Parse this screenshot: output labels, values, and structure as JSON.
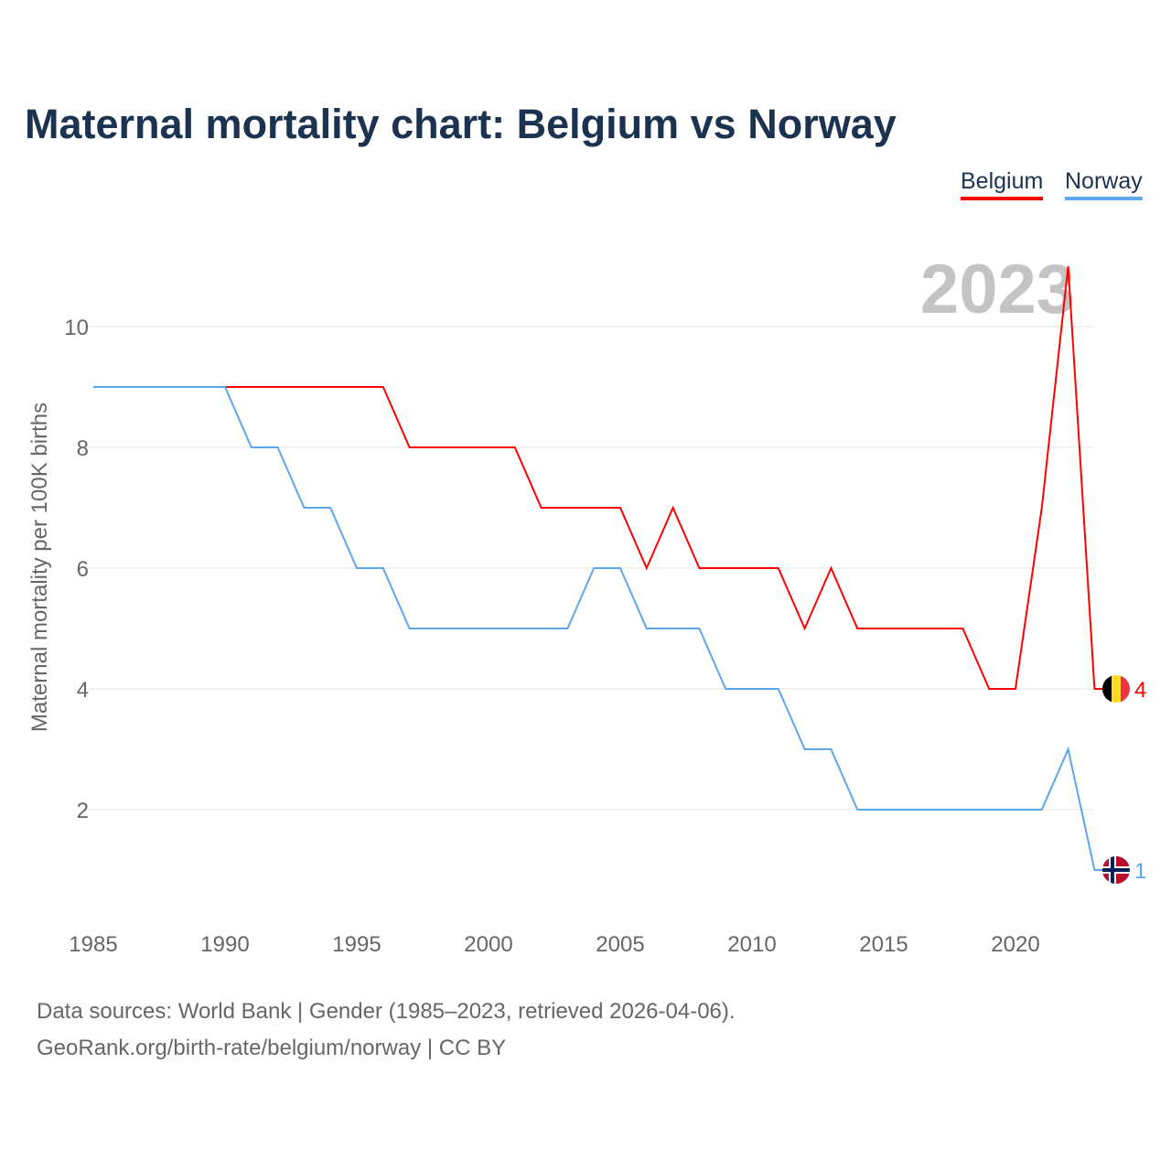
{
  "chart_data": {
    "type": "line",
    "title": "Maternal mortality chart: Belgium vs Norway",
    "xlabel": "",
    "ylabel": "Maternal mortality per 100K births",
    "x": [
      1985,
      1986,
      1987,
      1988,
      1989,
      1990,
      1991,
      1992,
      1993,
      1994,
      1995,
      1996,
      1997,
      1998,
      1999,
      2000,
      2001,
      2002,
      2003,
      2004,
      2005,
      2006,
      2007,
      2008,
      2009,
      2010,
      2011,
      2012,
      2013,
      2014,
      2015,
      2016,
      2017,
      2018,
      2019,
      2020,
      2021,
      2022,
      2023
    ],
    "series": [
      {
        "name": "Belgium",
        "color": "#ff0000",
        "end_label": "4",
        "values": [
          9,
          9,
          9,
          9,
          9,
          9,
          9,
          9,
          9,
          9,
          9,
          9,
          8,
          8,
          8,
          8,
          8,
          7,
          7,
          7,
          7,
          6,
          7,
          6,
          6,
          6,
          6,
          5,
          6,
          5,
          5,
          5,
          5,
          5,
          4,
          4,
          7,
          11,
          4
        ]
      },
      {
        "name": "Norway",
        "color": "#5ca6ec",
        "end_label": "1",
        "values": [
          9,
          9,
          9,
          9,
          9,
          9,
          8,
          8,
          7,
          7,
          6,
          6,
          5,
          5,
          5,
          5,
          5,
          5,
          5,
          6,
          6,
          5,
          5,
          5,
          4,
          4,
          4,
          3,
          3,
          2,
          2,
          2,
          2,
          2,
          2,
          2,
          2,
          3,
          1
        ]
      }
    ],
    "xticks": [
      "1985",
      "1990",
      "1995",
      "2000",
      "2005",
      "2010",
      "2015",
      "2020"
    ],
    "yticks": [
      "2",
      "4",
      "6",
      "8",
      "10"
    ],
    "xlim": [
      1985,
      2023
    ],
    "ylim": [
      0,
      11
    ],
    "year_watermark": "2023",
    "legend_position": "top-right"
  },
  "source": {
    "line1": "Data sources: World Bank | Gender (1985–2023, retrieved 2026-04-06).",
    "line2": "GeoRank.org/birth-rate/belgium/norway | CC BY"
  }
}
